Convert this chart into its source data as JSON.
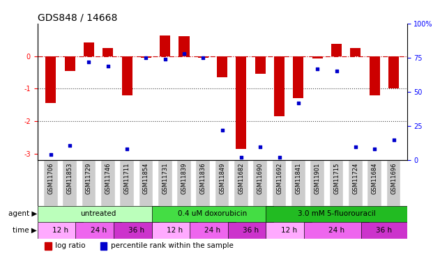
{
  "title": "GDS848 / 14668",
  "samples": [
    "GSM11706",
    "GSM11853",
    "GSM11729",
    "GSM11746",
    "GSM11711",
    "GSM11854",
    "GSM11731",
    "GSM11839",
    "GSM11836",
    "GSM11849",
    "GSM11682",
    "GSM11690",
    "GSM11692",
    "GSM11841",
    "GSM11901",
    "GSM11715",
    "GSM11724",
    "GSM11684",
    "GSM11696"
  ],
  "log_ratios": [
    -1.45,
    -0.45,
    0.42,
    0.25,
    -1.2,
    -0.05,
    0.63,
    0.62,
    -0.05,
    -0.65,
    -2.85,
    -0.55,
    -1.85,
    -1.3,
    -0.08,
    0.38,
    0.25,
    -1.2,
    -1.0
  ],
  "percentile_ranks": [
    4,
    11,
    72,
    69,
    8,
    75,
    74,
    78,
    75,
    22,
    2,
    10,
    2,
    42,
    67,
    65,
    10,
    8,
    15
  ],
  "ylim_left": [
    -3.2,
    1.0
  ],
  "ylim_right": [
    0,
    100
  ],
  "agents": [
    {
      "label": "untreated",
      "start": 0,
      "end": 6,
      "color": "#bbffbb"
    },
    {
      "label": "0.4 uM doxorubicin",
      "start": 6,
      "end": 12,
      "color": "#44dd44"
    },
    {
      "label": "3.0 mM 5-fluorouracil",
      "start": 12,
      "end": 19,
      "color": "#22bb22"
    }
  ],
  "times": [
    {
      "label": "12 h",
      "start": 0,
      "end": 2,
      "color": "#ffaaff"
    },
    {
      "label": "24 h",
      "start": 2,
      "end": 4,
      "color": "#ee66ee"
    },
    {
      "label": "36 h",
      "start": 4,
      "end": 6,
      "color": "#cc33cc"
    },
    {
      "label": "12 h",
      "start": 6,
      "end": 8,
      "color": "#ffaaff"
    },
    {
      "label": "24 h",
      "start": 8,
      "end": 10,
      "color": "#ee66ee"
    },
    {
      "label": "36 h",
      "start": 10,
      "end": 12,
      "color": "#cc33cc"
    },
    {
      "label": "12 h",
      "start": 12,
      "end": 14,
      "color": "#ffaaff"
    },
    {
      "label": "24 h",
      "start": 14,
      "end": 17,
      "color": "#ee66ee"
    },
    {
      "label": "36 h",
      "start": 17,
      "end": 19,
      "color": "#cc33cc"
    }
  ],
  "bar_color": "#cc0000",
  "dot_color": "#0000cc",
  "hline_color": "#cc0000",
  "dotline_color": "#444444",
  "bar_width": 0.55,
  "tick_label_fontsize": 6.0,
  "title_fontsize": 10,
  "legend_fontsize": 7.5,
  "agent_fontsize": 7.5,
  "time_fontsize": 7.5,
  "label_fontsize": 7.5,
  "ytick_fontsize": 7,
  "gray_box_color": "#cccccc"
}
